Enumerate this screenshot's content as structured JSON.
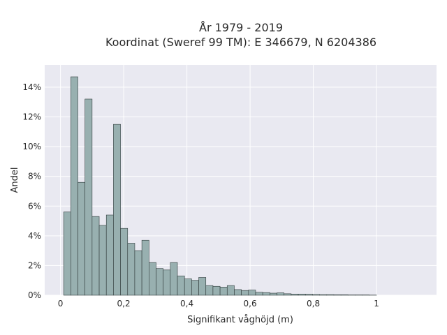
{
  "chart_data": {
    "type": "bar",
    "title_line1": "År 1979 - 2019",
    "title_line2": "Koordinat (Sweref 99 TM): E 346679, N 6204386",
    "xlabel": "Signifikant våghöjd (m)",
    "ylabel": "Andel",
    "xlim": [
      -0.05,
      1.19
    ],
    "ylim": [
      0,
      15.5
    ],
    "bin_width": 0.0225,
    "x_start": 0.01,
    "x_ticks": [
      {
        "value": 0,
        "label": "0"
      },
      {
        "value": 0.2,
        "label": "0,2"
      },
      {
        "value": 0.4,
        "label": "0,4"
      },
      {
        "value": 0.6,
        "label": "0,6"
      },
      {
        "value": 0.8,
        "label": "0,8"
      },
      {
        "value": 1,
        "label": "1"
      }
    ],
    "y_ticks": [
      {
        "value": 0,
        "label": "0%"
      },
      {
        "value": 2,
        "label": "2%"
      },
      {
        "value": 4,
        "label": "4%"
      },
      {
        "value": 6,
        "label": "6%"
      },
      {
        "value": 8,
        "label": "8%"
      },
      {
        "value": 10,
        "label": "10%"
      },
      {
        "value": 12,
        "label": "12%"
      },
      {
        "value": 14,
        "label": "14%"
      }
    ],
    "values": [
      5.6,
      14.7,
      7.6,
      13.2,
      5.3,
      4.7,
      5.4,
      11.5,
      4.5,
      3.5,
      3.0,
      3.7,
      2.2,
      1.8,
      1.7,
      2.2,
      1.3,
      1.1,
      1.0,
      1.2,
      0.65,
      0.6,
      0.55,
      0.65,
      0.38,
      0.32,
      0.35,
      0.2,
      0.18,
      0.14,
      0.16,
      0.1,
      0.08,
      0.08,
      0.07,
      0.05,
      0.04,
      0.04,
      0.03,
      0.03,
      0.02,
      0.02,
      0.02,
      0.01
    ],
    "colors": {
      "bar_fill": "#98b0b0",
      "bar_stroke": "#2f3a3a",
      "plot_bg": "#e9e9f1",
      "grid": "#ffffff"
    },
    "grid": true
  }
}
